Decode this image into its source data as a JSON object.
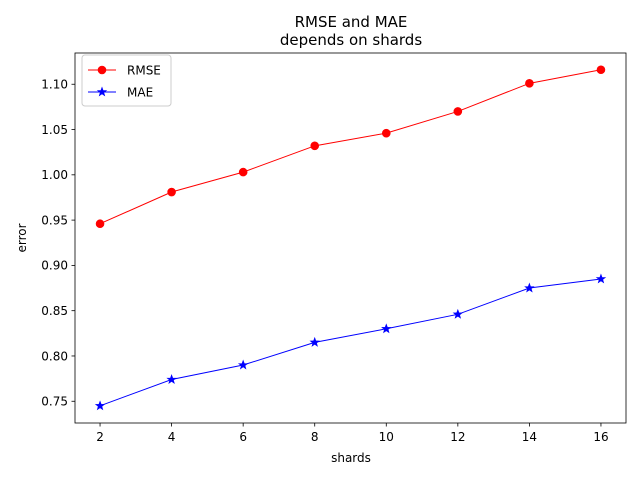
{
  "chart_data": {
    "type": "line",
    "title_line1": "RMSE and MAE",
    "title_line2": "depends on shards",
    "xlabel": "shards",
    "ylabel": "error",
    "x": [
      2,
      4,
      6,
      8,
      10,
      12,
      14,
      16
    ],
    "xlim": [
      1.3,
      16.7
    ],
    "ylim": [
      0.726,
      1.1345
    ],
    "xticks": [
      2,
      4,
      6,
      8,
      10,
      12,
      14,
      16
    ],
    "yticks": [
      0.75,
      0.8,
      0.85,
      0.9,
      0.95,
      1.0,
      1.05,
      1.1
    ],
    "ytick_labels": [
      "0.75",
      "0.80",
      "0.85",
      "0.90",
      "0.95",
      "1.00",
      "1.05",
      "1.10"
    ],
    "grid": false,
    "legend_position": "top-left",
    "series": [
      {
        "name": "RMSE",
        "color": "#ff0000",
        "marker": "circle",
        "values": [
          0.946,
          0.981,
          1.003,
          1.032,
          1.046,
          1.07,
          1.101,
          1.116
        ]
      },
      {
        "name": "MAE",
        "color": "#0000ff",
        "marker": "star",
        "values": [
          0.745,
          0.774,
          0.79,
          0.815,
          0.83,
          0.846,
          0.875,
          0.885
        ]
      }
    ]
  }
}
